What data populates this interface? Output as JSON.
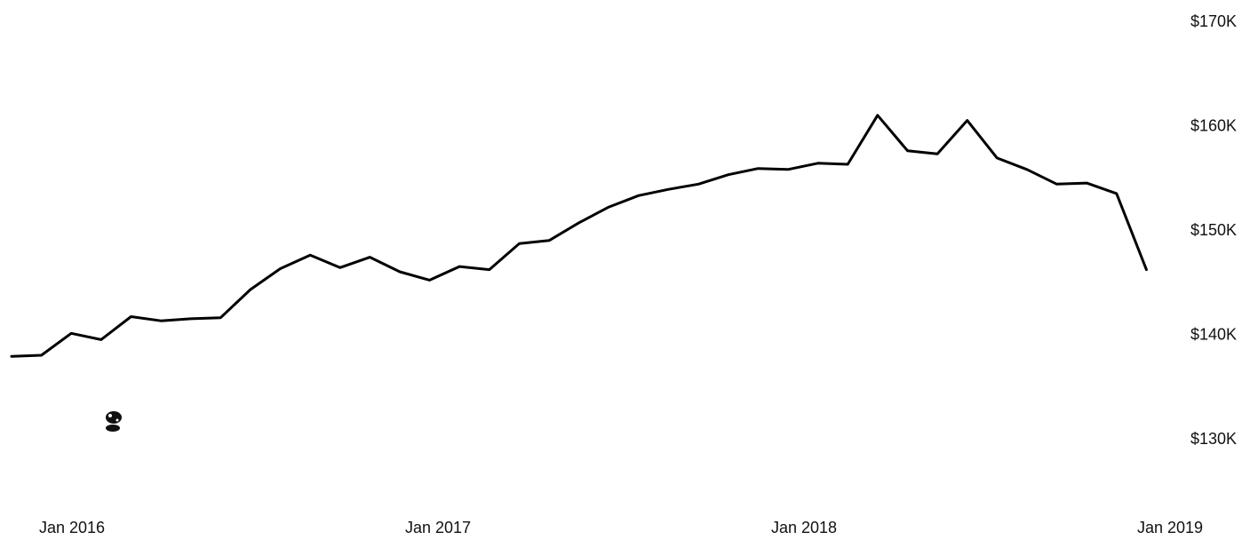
{
  "chart_data": {
    "type": "line",
    "title": "",
    "xlabel": "",
    "ylabel": "",
    "x_ticks": [
      {
        "date": "2016-01",
        "label": "Jan 2016"
      },
      {
        "date": "2017-01",
        "label": "Jan 2017"
      },
      {
        "date": "2018-01",
        "label": "Jan 2018"
      },
      {
        "date": "2019-01",
        "label": "Jan 2019"
      }
    ],
    "y_ticks": [
      {
        "value": 130000,
        "label": "$130K"
      },
      {
        "value": 140000,
        "label": "$140K"
      },
      {
        "value": 150000,
        "label": "$150K"
      },
      {
        "value": 160000,
        "label": "$160K"
      },
      {
        "value": 170000,
        "label": "$170K"
      }
    ],
    "xlim": [
      "2015-10",
      "2019-01"
    ],
    "ylim": [
      125000,
      173000
    ],
    "grid": false,
    "y_axis_position": "right",
    "line_color": "#000000",
    "series": [
      {
        "points": [
          {
            "date": "2015-10",
            "value": 137900
          },
          {
            "date": "2015-11",
            "value": 138000
          },
          {
            "date": "2015-12",
            "value": 140100
          },
          {
            "date": "2016-01",
            "value": 139500
          },
          {
            "date": "2016-02",
            "value": 141700
          },
          {
            "date": "2016-03",
            "value": 141300
          },
          {
            "date": "2016-04",
            "value": 141500
          },
          {
            "date": "2016-05",
            "value": 141600
          },
          {
            "date": "2016-06",
            "value": 144300
          },
          {
            "date": "2016-07",
            "value": 146300
          },
          {
            "date": "2016-08",
            "value": 147600
          },
          {
            "date": "2016-09",
            "value": 146400
          },
          {
            "date": "2016-10",
            "value": 147400
          },
          {
            "date": "2016-11",
            "value": 146000
          },
          {
            "date": "2016-12",
            "value": 145200
          },
          {
            "date": "2017-01",
            "value": 146500
          },
          {
            "date": "2017-02",
            "value": 146200
          },
          {
            "date": "2017-03",
            "value": 148700
          },
          {
            "date": "2017-04",
            "value": 149000
          },
          {
            "date": "2017-05",
            "value": 150700
          },
          {
            "date": "2017-06",
            "value": 152200
          },
          {
            "date": "2017-07",
            "value": 153300
          },
          {
            "date": "2017-08",
            "value": 153900
          },
          {
            "date": "2017-09",
            "value": 154400
          },
          {
            "date": "2017-10",
            "value": 155300
          },
          {
            "date": "2017-11",
            "value": 155900
          },
          {
            "date": "2017-12",
            "value": 155800
          },
          {
            "date": "2018-01",
            "value": 156400
          },
          {
            "date": "2018-02",
            "value": 156300
          },
          {
            "date": "2018-03",
            "value": 161000
          },
          {
            "date": "2018-04",
            "value": 157600
          },
          {
            "date": "2018-05",
            "value": 157300
          },
          {
            "date": "2018-06",
            "value": 160500
          },
          {
            "date": "2018-07",
            "value": 156900
          },
          {
            "date": "2018-08",
            "value": 155800
          },
          {
            "date": "2018-09",
            "value": 154400
          },
          {
            "date": "2018-10",
            "value": 154500
          },
          {
            "date": "2018-11",
            "value": 153500
          },
          {
            "date": "2018-12",
            "value": 146200
          }
        ]
      }
    ]
  }
}
